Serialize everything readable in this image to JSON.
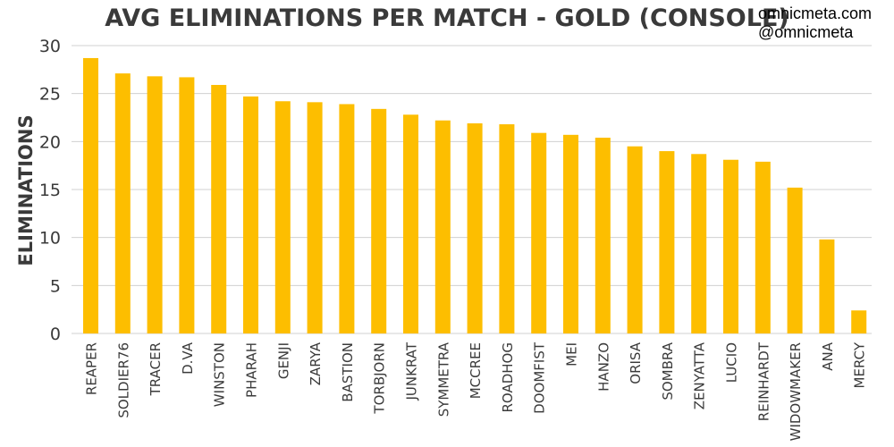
{
  "watermark": {
    "site": "omnicmeta.com",
    "handle": "@omnicmeta"
  },
  "colors": {
    "bar": "#FDBE00",
    "grid": "#d0d0d0",
    "text": "#3a3a3a"
  },
  "chart_data": {
    "type": "bar",
    "title": "AVG ELIMINATIONS PER MATCH - GOLD (CONSOLE)",
    "xlabel": "",
    "ylabel": "ELIMINATIONS",
    "ylim": [
      0,
      30
    ],
    "yticks": [
      0,
      5,
      10,
      15,
      20,
      25,
      30
    ],
    "grid": true,
    "categories": [
      "REAPER",
      "SOLDIER76",
      "TRACER",
      "D.VA",
      "WINSTON",
      "PHARAH",
      "GENJI",
      "ZARYA",
      "BASTION",
      "TORBJORN",
      "JUNKRAT",
      "SYMMETRA",
      "MCCREE",
      "ROADHOG",
      "DOOMFIST",
      "MEI",
      "HANZO",
      "ORISA",
      "SOMBRA",
      "ZENYATTA",
      "LUCIO",
      "REINHARDT",
      "WIDOWMAKER",
      "ANA",
      "MERCY"
    ],
    "values": [
      28.7,
      27.1,
      26.8,
      26.7,
      25.9,
      24.7,
      24.2,
      24.1,
      23.9,
      23.4,
      22.8,
      22.2,
      21.9,
      21.8,
      20.9,
      20.7,
      20.4,
      19.5,
      19.0,
      18.7,
      18.1,
      17.9,
      15.2,
      9.8,
      2.4
    ]
  }
}
